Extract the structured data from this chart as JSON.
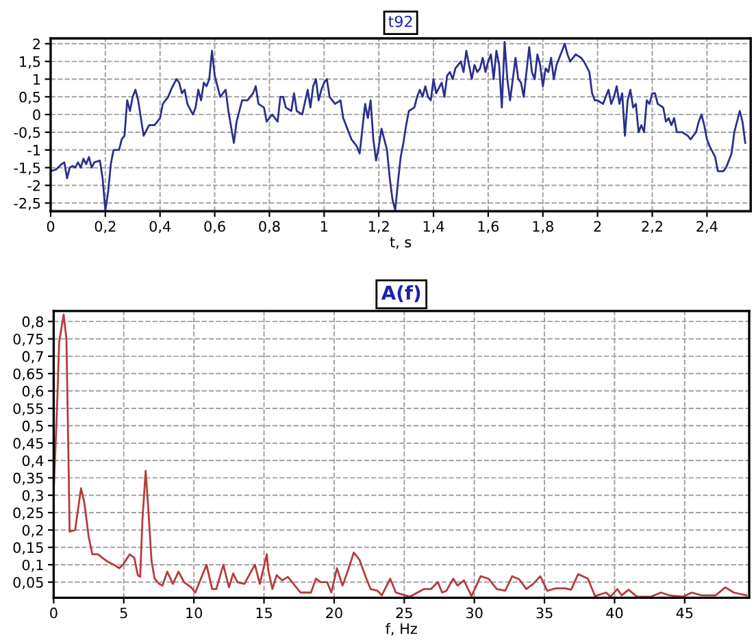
{
  "chart_data": [
    {
      "type": "line",
      "title": "t92",
      "xlabel": "t, s",
      "grid": true,
      "legend": false,
      "xlim": [
        0,
        2.56
      ],
      "ylim": [
        -2.73,
        2.15
      ],
      "xticks": [
        0,
        {
          "value": 0.2,
          "label": "0,2"
        },
        {
          "value": 0.4,
          "label": "0,4"
        },
        {
          "value": 0.6,
          "label": "0,6"
        },
        {
          "value": 0.8,
          "label": "0,8"
        },
        1,
        {
          "value": 1.2,
          "label": "1,2"
        },
        {
          "value": 1.4,
          "label": "1,4"
        },
        {
          "value": 1.6,
          "label": "1,6"
        },
        {
          "value": 1.8,
          "label": "1,8"
        },
        2,
        {
          "value": 2.2,
          "label": "2,2"
        },
        {
          "value": 2.4,
          "label": "2,4"
        }
      ],
      "yticks": [
        {
          "value": -2.5,
          "label": "-2,5"
        },
        {
          "value": -2,
          "label": "-2"
        },
        {
          "value": -1.5,
          "label": "-1,5"
        },
        {
          "value": -1,
          "label": "-1"
        },
        {
          "value": -0.5,
          "label": "-0,5"
        },
        0,
        {
          "value": 0.5,
          "label": "0,5"
        },
        1,
        {
          "value": 1.5,
          "label": "1,5"
        },
        2
      ],
      "series": [
        {
          "color": "#2b2f8f",
          "x": [
            0,
            0.02,
            0.04,
            0.05,
            0.06,
            0.07,
            0.08,
            0.09,
            0.1,
            0.11,
            0.12,
            0.13,
            0.14,
            0.15,
            0.16,
            0.18,
            0.19,
            0.2,
            0.21,
            0.22,
            0.23,
            0.25,
            0.26,
            0.27,
            0.28,
            0.29,
            0.3,
            0.31,
            0.32,
            0.34,
            0.36,
            0.38,
            0.4,
            0.41,
            0.43,
            0.44,
            0.46,
            0.47,
            0.48,
            0.49,
            0.5,
            0.52,
            0.53,
            0.54,
            0.55,
            0.56,
            0.57,
            0.58,
            0.59,
            0.6,
            0.62,
            0.64,
            0.65,
            0.67,
            0.68,
            0.7,
            0.72,
            0.74,
            0.75,
            0.76,
            0.78,
            0.79,
            0.81,
            0.83,
            0.84,
            0.85,
            0.86,
            0.88,
            0.89,
            0.9,
            0.92,
            0.94,
            0.95,
            0.96,
            0.97,
            0.98,
            0.99,
            1.0,
            1.01,
            1.02,
            1.04,
            1.06,
            1.07,
            1.08,
            1.09,
            1.1,
            1.12,
            1.13,
            1.15,
            1.16,
            1.17,
            1.18,
            1.19,
            1.2,
            1.21,
            1.22,
            1.23,
            1.24,
            1.25,
            1.26,
            1.27,
            1.28,
            1.29,
            1.3,
            1.31,
            1.33,
            1.34,
            1.35,
            1.36,
            1.37,
            1.38,
            1.39,
            1.4,
            1.41,
            1.43,
            1.44,
            1.45,
            1.46,
            1.47,
            1.48,
            1.5,
            1.51,
            1.52,
            1.53,
            1.54,
            1.55,
            1.56,
            1.57,
            1.58,
            1.59,
            1.6,
            1.61,
            1.62,
            1.63,
            1.64,
            1.65,
            1.66,
            1.67,
            1.68,
            1.7,
            1.71,
            1.72,
            1.73,
            1.74,
            1.75,
            1.76,
            1.77,
            1.78,
            1.79,
            1.8,
            1.81,
            1.82,
            1.83,
            1.84,
            1.85,
            1.86,
            1.87,
            1.88,
            1.89,
            1.9,
            1.92,
            1.94,
            1.95,
            1.97,
            1.98,
            1.99,
            2.0,
            2.02,
            2.03,
            2.04,
            2.05,
            2.06,
            2.07,
            2.08,
            2.09,
            2.1,
            2.11,
            2.12,
            2.13,
            2.14,
            2.15,
            2.16,
            2.17,
            2.18,
            2.19,
            2.2,
            2.21,
            2.22,
            2.24,
            2.25,
            2.26,
            2.27,
            2.28,
            2.29,
            2.31,
            2.33,
            2.34,
            2.36,
            2.37,
            2.38,
            2.39,
            2.4,
            2.41,
            2.43,
            2.44,
            2.46,
            2.47,
            2.49,
            2.5,
            2.51,
            2.52,
            2.53,
            2.54
          ],
          "values": [
            -1.6,
            -1.55,
            -1.4,
            -1.35,
            -1.8,
            -1.5,
            -1.45,
            -1.5,
            -1.35,
            -1.5,
            -1.25,
            -1.4,
            -1.2,
            -1.5,
            -1.35,
            -1.3,
            -1.8,
            -2.7,
            -2.2,
            -1.4,
            -1.0,
            -1.0,
            -0.7,
            -0.6,
            0.4,
            0.1,
            0.5,
            0.7,
            0.4,
            -0.6,
            -0.3,
            -0.3,
            -0.1,
            0.3,
            0.5,
            0.7,
            1.0,
            0.9,
            0.6,
            0.7,
            0.3,
            0.0,
            0.2,
            0.7,
            0.4,
            0.9,
            0.8,
            1.0,
            1.8,
            1.1,
            0.5,
            0.7,
            0.1,
            -0.8,
            -0.2,
            0.4,
            0.4,
            0.6,
            0.8,
            0.3,
            0.2,
            -0.2,
            0.0,
            -0.2,
            0.5,
            0.5,
            0.2,
            0.1,
            0.6,
            0.1,
            0.0,
            0.7,
            0.2,
            0.8,
            1.0,
            0.4,
            0.7,
            0.9,
            1.0,
            0.5,
            0.3,
            0.4,
            -0.1,
            -0.3,
            -0.5,
            -0.7,
            -0.9,
            -1.1,
            0.3,
            -0.1,
            0.4,
            -0.7,
            -1.3,
            -0.9,
            -0.4,
            -0.7,
            -1.0,
            -1.8,
            -2.4,
            -2.7,
            -1.9,
            -1.2,
            -0.8,
            -0.3,
            0.1,
            0.2,
            0.5,
            0.7,
            0.5,
            0.8,
            0.5,
            0.4,
            1.0,
            0.6,
            0.9,
            0.5,
            1.1,
            1.2,
            1.0,
            1.3,
            1.5,
            1.2,
            1.8,
            1.4,
            1.0,
            1.4,
            1.2,
            1.3,
            1.6,
            1.2,
            1.5,
            1.7,
            1.0,
            1.8,
            1.4,
            0.2,
            2.05,
            1.0,
            0.4,
            1.6,
            1.0,
            0.9,
            0.5,
            1.2,
            1.9,
            1.2,
            1.0,
            1.7,
            1.4,
            0.8,
            1.3,
            1.2,
            1.6,
            1.0,
            1.4,
            1.6,
            1.8,
            2.0,
            1.7,
            1.5,
            1.7,
            1.6,
            1.5,
            1.2,
            0.6,
            0.4,
            0.4,
            0.3,
            0.5,
            0.7,
            0.3,
            0.5,
            0.8,
            0.3,
            0.6,
            -0.6,
            0.4,
            0.7,
            0.2,
            0.3,
            -0.5,
            -0.3,
            -0.5,
            0.4,
            0.3,
            0.6,
            0.6,
            0.3,
            0.2,
            -0.2,
            -0.1,
            -0.3,
            -0.1,
            -0.5,
            -0.5,
            -0.6,
            -0.7,
            -0.5,
            -0.2,
            0.0,
            -0.3,
            -0.7,
            -0.9,
            -1.2,
            -1.6,
            -1.6,
            -1.5,
            -1.1,
            -0.5,
            -0.2,
            0.1,
            -0.2,
            -0.8
          ]
        }
      ]
    },
    {
      "type": "line",
      "title": "A(f)",
      "xlabel": "f, Hz",
      "grid": true,
      "legend": false,
      "xlim": [
        0,
        49.6
      ],
      "ylim": [
        0.005,
        0.83
      ],
      "xticks": [
        0,
        5,
        10,
        15,
        20,
        25,
        30,
        35,
        40,
        45
      ],
      "yticks": [
        {
          "value": 0.05,
          "label": "0,05"
        },
        {
          "value": 0.1,
          "label": "0,1"
        },
        {
          "value": 0.15,
          "label": "0,15"
        },
        {
          "value": 0.2,
          "label": "0,2"
        },
        {
          "value": 0.25,
          "label": "0,25"
        },
        {
          "value": 0.3,
          "label": "0,3"
        },
        {
          "value": 0.35,
          "label": "0,35"
        },
        {
          "value": 0.4,
          "label": "0,4"
        },
        {
          "value": 0.45,
          "label": "0,45"
        },
        {
          "value": 0.5,
          "label": "0,5"
        },
        {
          "value": 0.55,
          "label": "0,55"
        },
        {
          "value": 0.6,
          "label": "0,6"
        },
        {
          "value": 0.65,
          "label": "0,65"
        },
        {
          "value": 0.7,
          "label": "0,7"
        },
        {
          "value": 0.75,
          "label": "0,75"
        },
        {
          "value": 0.8,
          "label": "0,8"
        }
      ],
      "series": [
        {
          "color": "#b83a3a",
          "x": [
            0,
            0.23,
            0.39,
            0.71,
            0.91,
            1.04,
            1.14,
            1.53,
            1.95,
            2.18,
            2.5,
            2.76,
            3.15,
            3.8,
            4.29,
            4.68,
            4.94,
            5.42,
            5.75,
            6.0,
            6.17,
            6.33,
            6.56,
            6.75,
            6.98,
            7.2,
            7.53,
            7.76,
            8.1,
            8.5,
            8.9,
            9.3,
            9.8,
            10.1,
            10.6,
            10.9,
            11.3,
            11.6,
            12.1,
            12.5,
            12.8,
            13.1,
            13.6,
            14.35,
            14.7,
            15.2,
            15.3,
            15.6,
            15.9,
            16.3,
            16.7,
            17.6,
            18.35,
            18.7,
            19.05,
            19.5,
            19.8,
            20.2,
            20.6,
            21.0,
            21.4,
            21.8,
            22.3,
            22.6,
            23.1,
            23.4,
            24.0,
            24.4,
            25.4,
            26.4,
            26.9,
            27.4,
            27.7,
            28.0,
            28.5,
            28.8,
            29.25,
            29.8,
            30.45,
            31.0,
            31.6,
            32.2,
            32.7,
            33.2,
            33.7,
            34.2,
            34.7,
            35.2,
            35.8,
            36.5,
            36.9,
            37.4,
            38.1,
            38.6,
            39.4,
            39.7,
            40.2,
            40.5,
            41.0,
            41.6,
            42.6,
            43.3,
            43.9,
            44.9,
            45.5,
            46.2,
            47.2,
            47.9,
            48.5,
            49.4
          ],
          "values": [
            0.31,
            0.54,
            0.74,
            0.82,
            0.75,
            0.44,
            0.195,
            0.2,
            0.32,
            0.28,
            0.18,
            0.13,
            0.13,
            0.11,
            0.1,
            0.09,
            0.1,
            0.13,
            0.12,
            0.07,
            0.065,
            0.23,
            0.37,
            0.26,
            0.11,
            0.06,
            0.045,
            0.04,
            0.08,
            0.045,
            0.08,
            0.05,
            0.035,
            0.02,
            0.07,
            0.1,
            0.03,
            0.03,
            0.1,
            0.035,
            0.075,
            0.05,
            0.045,
            0.1,
            0.045,
            0.13,
            0.085,
            0.03,
            0.07,
            0.055,
            0.065,
            0.02,
            0.02,
            0.06,
            0.05,
            0.05,
            0.02,
            0.09,
            0.04,
            0.085,
            0.135,
            0.115,
            0.06,
            0.03,
            0.025,
            0.012,
            0.06,
            0.02,
            0.008,
            0.03,
            0.03,
            0.05,
            0.02,
            0.025,
            0.06,
            0.04,
            0.055,
            0.01,
            0.067,
            0.06,
            0.03,
            0.025,
            0.067,
            0.058,
            0.03,
            0.045,
            0.067,
            0.025,
            0.032,
            0.032,
            0.028,
            0.073,
            0.06,
            0.01,
            0.02,
            0.008,
            0.03,
            0.012,
            0.028,
            0.008,
            0.008,
            0.02,
            0.012,
            0.008,
            0.02,
            0.012,
            0.012,
            0.035,
            0.02,
            0.012
          ]
        }
      ]
    }
  ]
}
